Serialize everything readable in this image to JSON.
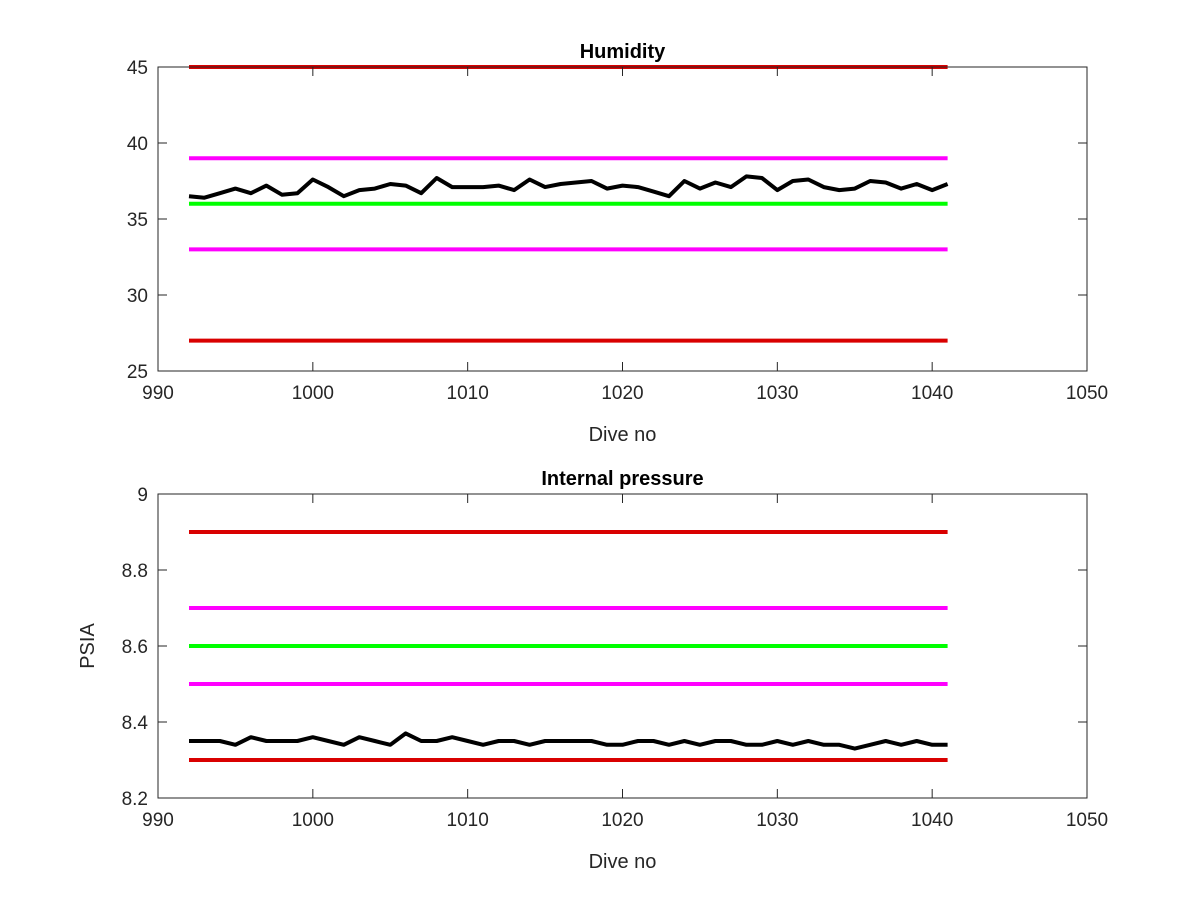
{
  "colors": {
    "red": "#d90000",
    "magenta": "#ff00ff",
    "green": "#00ff00",
    "black": "#000000"
  },
  "chart_data": [
    {
      "type": "line",
      "title": "Humidity",
      "xlabel": "Dive no",
      "ylabel": "",
      "xlim": [
        990,
        1050
      ],
      "ylim": [
        25,
        45
      ],
      "xticks": [
        990,
        1000,
        1010,
        1020,
        1030,
        1040,
        1050
      ],
      "yticks": [
        25,
        30,
        35,
        40,
        45
      ],
      "xtick_labels": [
        "990",
        "1000",
        "1010",
        "1020",
        "1030",
        "1040",
        "1050"
      ],
      "ytick_labels": [
        "25",
        "30",
        "35",
        "40",
        "45"
      ],
      "grid": false,
      "legend": "none",
      "series": [
        {
          "color": "red",
          "x": [
            992,
            1041
          ],
          "y": [
            45,
            45
          ]
        },
        {
          "color": "magenta",
          "x": [
            992,
            1041
          ],
          "y": [
            39,
            39
          ]
        },
        {
          "color": "green",
          "x": [
            992,
            1041
          ],
          "y": [
            36,
            36
          ]
        },
        {
          "color": "magenta",
          "x": [
            992,
            1041
          ],
          "y": [
            33,
            33
          ]
        },
        {
          "color": "red",
          "x": [
            992,
            1041
          ],
          "y": [
            27,
            27
          ]
        },
        {
          "color": "black",
          "x": [
            992,
            993,
            994,
            995,
            996,
            997,
            998,
            999,
            1000,
            1001,
            1002,
            1003,
            1004,
            1005,
            1006,
            1007,
            1008,
            1009,
            1010,
            1011,
            1012,
            1013,
            1014,
            1015,
            1016,
            1017,
            1018,
            1019,
            1020,
            1021,
            1022,
            1023,
            1024,
            1025,
            1026,
            1027,
            1028,
            1029,
            1030,
            1031,
            1032,
            1033,
            1034,
            1035,
            1036,
            1037,
            1038,
            1039,
            1040,
            1041
          ],
          "y": [
            36.5,
            36.4,
            36.7,
            37.0,
            36.7,
            37.2,
            36.6,
            36.7,
            37.6,
            37.1,
            36.5,
            36.9,
            37.0,
            37.3,
            37.2,
            36.7,
            37.7,
            37.1,
            37.1,
            37.1,
            37.2,
            36.9,
            37.6,
            37.1,
            37.3,
            37.4,
            37.5,
            37.0,
            37.2,
            37.1,
            36.8,
            36.5,
            37.5,
            37.0,
            37.4,
            37.1,
            37.8,
            37.7,
            36.9,
            37.5,
            37.6,
            37.1,
            36.9,
            37.0,
            37.5,
            37.4,
            37.0,
            37.3,
            36.9,
            37.3
          ]
        }
      ]
    },
    {
      "type": "line",
      "title": "Internal pressure",
      "xlabel": "Dive no",
      "ylabel": "PSIA",
      "xlim": [
        990,
        1050
      ],
      "ylim": [
        8.2,
        9.0
      ],
      "xticks": [
        990,
        1000,
        1010,
        1020,
        1030,
        1040,
        1050
      ],
      "yticks": [
        8.2,
        8.4,
        8.6,
        8.8,
        9.0
      ],
      "xtick_labels": [
        "990",
        "1000",
        "1010",
        "1020",
        "1030",
        "1040",
        "1050"
      ],
      "ytick_labels": [
        "8.2",
        "8.4",
        "8.6",
        "8.8",
        "9"
      ],
      "grid": false,
      "legend": "none",
      "series": [
        {
          "color": "red",
          "x": [
            992,
            1041
          ],
          "y": [
            8.9,
            8.9
          ]
        },
        {
          "color": "magenta",
          "x": [
            992,
            1041
          ],
          "y": [
            8.7,
            8.7
          ]
        },
        {
          "color": "green",
          "x": [
            992,
            1041
          ],
          "y": [
            8.6,
            8.6
          ]
        },
        {
          "color": "magenta",
          "x": [
            992,
            1041
          ],
          "y": [
            8.5,
            8.5
          ]
        },
        {
          "color": "red",
          "x": [
            992,
            1041
          ],
          "y": [
            8.3,
            8.3
          ]
        },
        {
          "color": "black",
          "x": [
            992,
            993,
            994,
            995,
            996,
            997,
            998,
            999,
            1000,
            1001,
            1002,
            1003,
            1004,
            1005,
            1006,
            1007,
            1008,
            1009,
            1010,
            1011,
            1012,
            1013,
            1014,
            1015,
            1016,
            1017,
            1018,
            1019,
            1020,
            1021,
            1022,
            1023,
            1024,
            1025,
            1026,
            1027,
            1028,
            1029,
            1030,
            1031,
            1032,
            1033,
            1034,
            1035,
            1036,
            1037,
            1038,
            1039,
            1040,
            1041
          ],
          "y": [
            8.35,
            8.35,
            8.35,
            8.34,
            8.36,
            8.35,
            8.35,
            8.35,
            8.36,
            8.35,
            8.34,
            8.36,
            8.35,
            8.34,
            8.37,
            8.35,
            8.35,
            8.36,
            8.35,
            8.34,
            8.35,
            8.35,
            8.34,
            8.35,
            8.35,
            8.35,
            8.35,
            8.34,
            8.34,
            8.35,
            8.35,
            8.34,
            8.35,
            8.34,
            8.35,
            8.35,
            8.34,
            8.34,
            8.35,
            8.34,
            8.35,
            8.34,
            8.34,
            8.33,
            8.34,
            8.35,
            8.34,
            8.35,
            8.34,
            8.34
          ]
        }
      ]
    }
  ]
}
